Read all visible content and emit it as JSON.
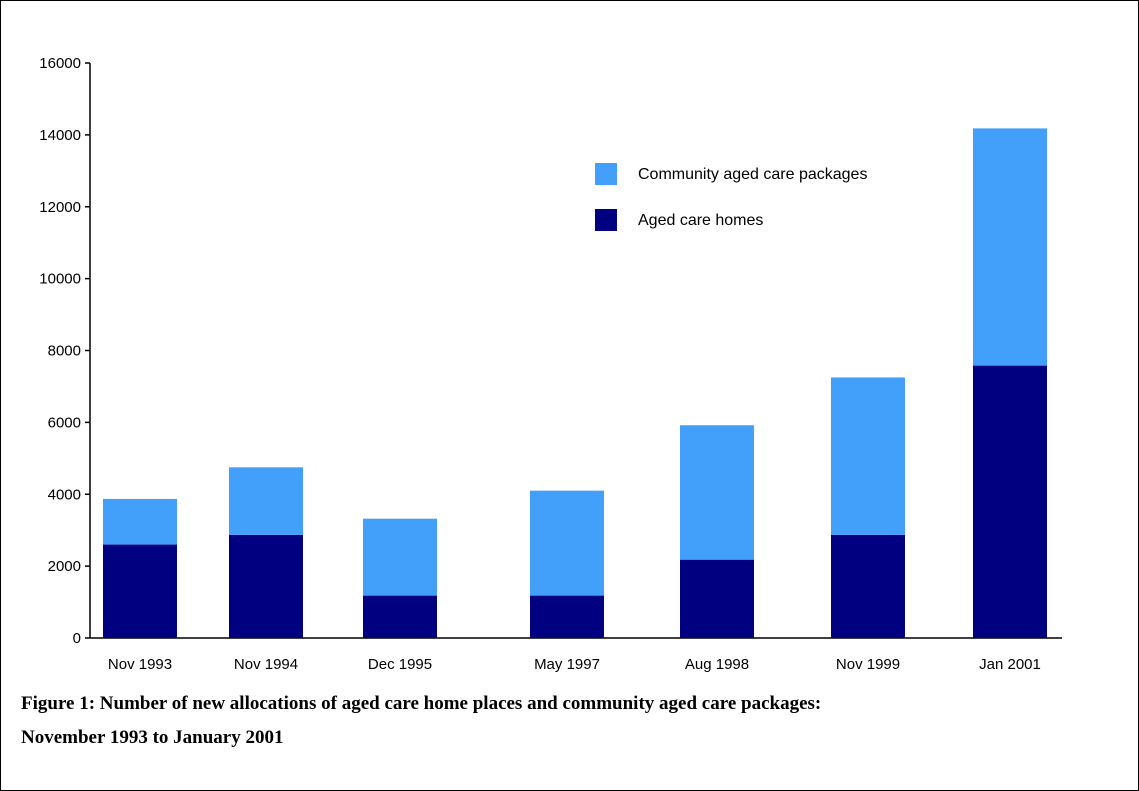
{
  "chart_data": {
    "type": "bar",
    "stacked": true,
    "categories": [
      "Nov 1993",
      "Nov 1994",
      "Dec 1995",
      "May 1997",
      "Aug 1998",
      "Nov 1999",
      "Jan 2001"
    ],
    "series": [
      {
        "name": "Aged care homes",
        "color": "#000080",
        "values": [
          2600,
          2870,
          1180,
          1180,
          2180,
          2870,
          7580
        ]
      },
      {
        "name": "Community aged care packages",
        "color": "#42a0fa",
        "values": [
          1270,
          1880,
          2140,
          2920,
          3740,
          4380,
          6600
        ]
      }
    ],
    "ylim": [
      0,
      16000
    ],
    "yticks": [
      0,
      2000,
      4000,
      6000,
      8000,
      10000,
      12000,
      14000,
      16000
    ],
    "legend": {
      "position": "upper-right",
      "entries": [
        {
          "label": "Community aged care packages",
          "color": "#42a0fa"
        },
        {
          "label": "Aged care homes",
          "color": "#000080"
        }
      ]
    },
    "grid": false,
    "title": "",
    "xlabel": "",
    "ylabel": ""
  },
  "caption": {
    "line1": "Figure 1: Number of new allocations of aged care home places and community aged care packages:",
    "line2": "November 1993 to January 2001"
  }
}
